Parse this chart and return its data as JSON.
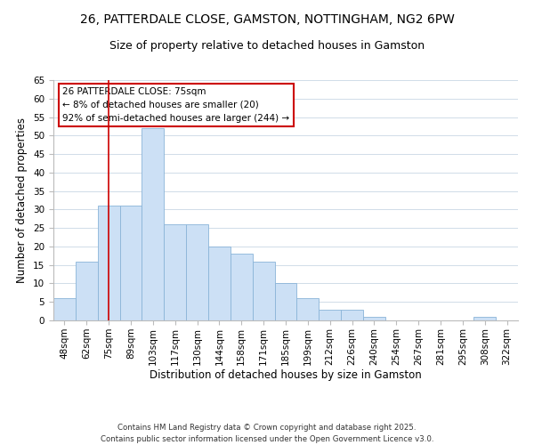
{
  "title": "26, PATTERDALE CLOSE, GAMSTON, NOTTINGHAM, NG2 6PW",
  "subtitle": "Size of property relative to detached houses in Gamston",
  "xlabel": "Distribution of detached houses by size in Gamston",
  "ylabel": "Number of detached properties",
  "bar_color": "#cce0f5",
  "bar_edge_color": "#8ab4d8",
  "grid_color": "#d0dce8",
  "categories": [
    "48sqm",
    "62sqm",
    "75sqm",
    "89sqm",
    "103sqm",
    "117sqm",
    "130sqm",
    "144sqm",
    "158sqm",
    "171sqm",
    "185sqm",
    "199sqm",
    "212sqm",
    "226sqm",
    "240sqm",
    "254sqm",
    "267sqm",
    "281sqm",
    "295sqm",
    "308sqm",
    "322sqm"
  ],
  "values": [
    6,
    16,
    31,
    31,
    52,
    26,
    26,
    20,
    18,
    16,
    10,
    6,
    3,
    3,
    1,
    0,
    0,
    0,
    0,
    1,
    0
  ],
  "ylim": [
    0,
    65
  ],
  "yticks": [
    0,
    5,
    10,
    15,
    20,
    25,
    30,
    35,
    40,
    45,
    50,
    55,
    60,
    65
  ],
  "property_line_x": 2,
  "property_line_color": "#cc0000",
  "annotation_title": "26 PATTERDALE CLOSE: 75sqm",
  "annotation_line1": "← 8% of detached houses are smaller (20)",
  "annotation_line2": "92% of semi-detached houses are larger (244) →",
  "annotation_box_color": "#ffffff",
  "annotation_box_edge": "#cc0000",
  "footer1": "Contains HM Land Registry data © Crown copyright and database right 2025.",
  "footer2": "Contains public sector information licensed under the Open Government Licence v3.0.",
  "background_color": "#ffffff",
  "title_fontsize": 10,
  "subtitle_fontsize": 9,
  "axis_label_fontsize": 8.5,
  "tick_fontsize": 7.5,
  "annotation_fontsize": 7.5
}
